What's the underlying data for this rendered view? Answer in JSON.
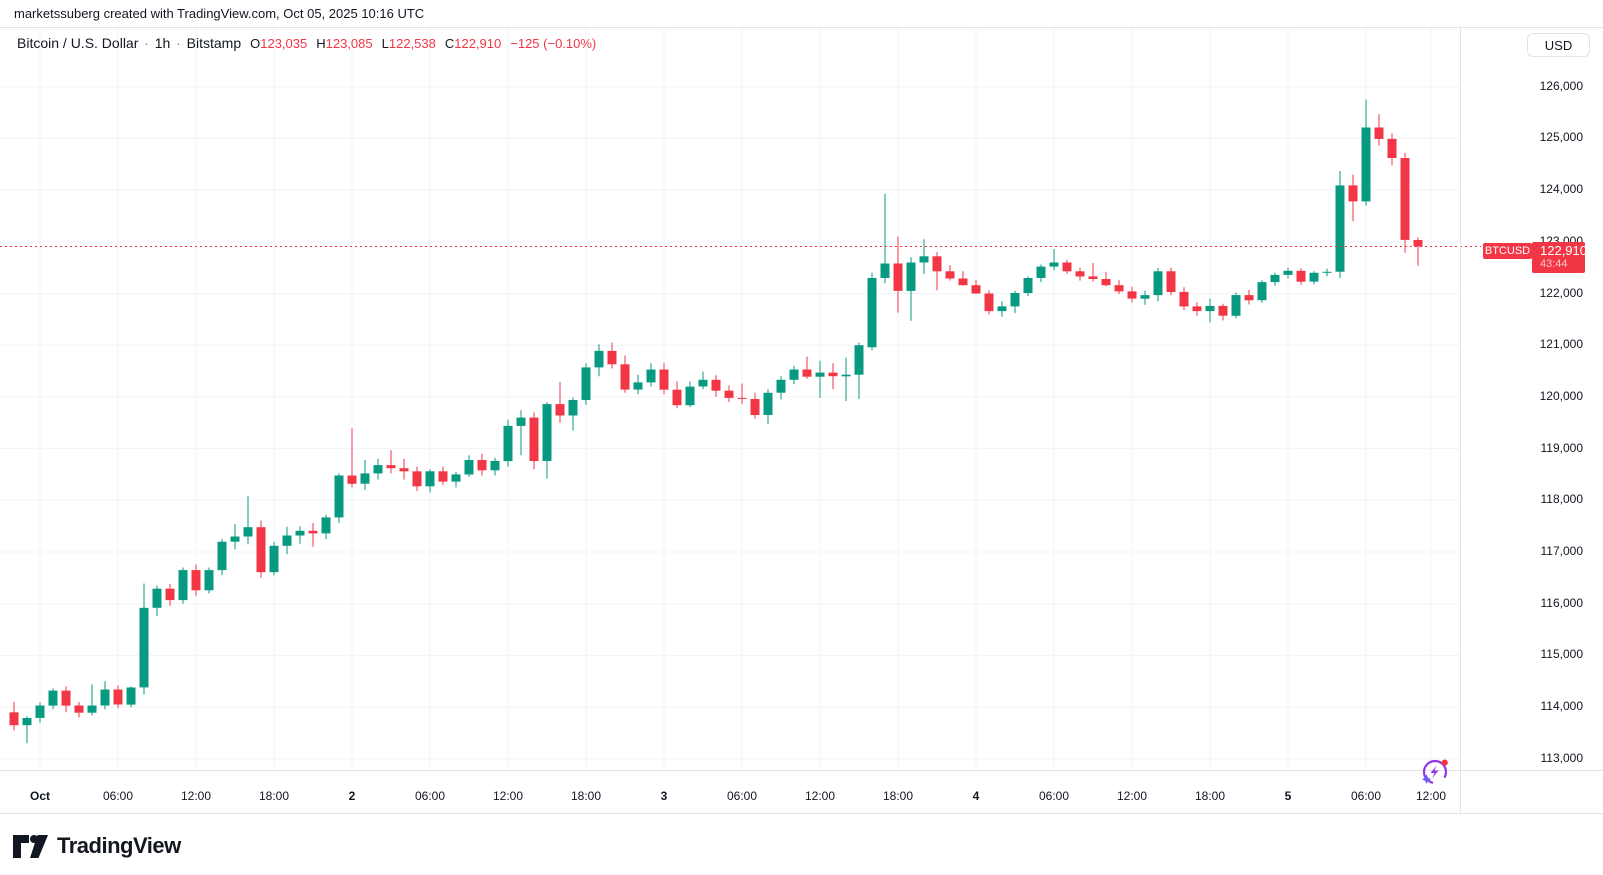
{
  "attribution": "marketssuberg created with TradingView.com, Oct 05, 2025 10:16 UTC",
  "header": {
    "symbol_title": "Bitcoin / U.S. Dollar",
    "separator": "·",
    "interval": "1h",
    "exchange": "Bitstamp",
    "ohlc": {
      "open_label": "O",
      "open": "123,035",
      "high_label": "H",
      "high": "123,085",
      "low_label": "L",
      "low": "122,538",
      "close_label": "C",
      "close": "122,910",
      "change": "−125 (−0.10%)"
    }
  },
  "currency_button_label": "USD",
  "price_axis": {
    "labels": [
      "126,000",
      "125,000",
      "124,000",
      "123,000",
      "122,000",
      "121,000",
      "120,000",
      "119,000",
      "118,000",
      "117,000",
      "116,000",
      "115,000",
      "114,000",
      "113,000"
    ]
  },
  "time_axis": {
    "labels": [
      {
        "text": "Oct",
        "index": 2,
        "bold": true
      },
      {
        "text": "06:00",
        "index": 8,
        "bold": false
      },
      {
        "text": "12:00",
        "index": 14,
        "bold": false
      },
      {
        "text": "18:00",
        "index": 20,
        "bold": false
      },
      {
        "text": "2",
        "index": 26,
        "bold": true
      },
      {
        "text": "06:00",
        "index": 32,
        "bold": false
      },
      {
        "text": "12:00",
        "index": 38,
        "bold": false
      },
      {
        "text": "18:00",
        "index": 44,
        "bold": false
      },
      {
        "text": "3",
        "index": 50,
        "bold": true
      },
      {
        "text": "06:00",
        "index": 56,
        "bold": false
      },
      {
        "text": "12:00",
        "index": 62,
        "bold": false
      },
      {
        "text": "18:00",
        "index": 68,
        "bold": false
      },
      {
        "text": "4",
        "index": 74,
        "bold": true
      },
      {
        "text": "06:00",
        "index": 80,
        "bold": false
      },
      {
        "text": "12:00",
        "index": 86,
        "bold": false
      },
      {
        "text": "18:00",
        "index": 92,
        "bold": false
      },
      {
        "text": "5",
        "index": 98,
        "bold": true
      },
      {
        "text": "06:00",
        "index": 104,
        "bold": false
      },
      {
        "text": "12:00",
        "index": 109,
        "bold": false
      }
    ]
  },
  "price_line": {
    "ticker": "BTCUSD",
    "price": "122,910",
    "countdown": "43:44"
  },
  "logo_text": "TradingView",
  "colors": {
    "up": "#089981",
    "down": "#f23645",
    "grid": "#f0f3fa",
    "border": "#e0e3eb",
    "axis_text": "#131722",
    "background": "#ffffff",
    "icon_purple": "#9334e9",
    "icon_star": "#6d5ef3",
    "notification_red": "#f23645"
  },
  "chart_data": {
    "type": "candlestick",
    "symbol": "BTCUSD",
    "title": "Bitcoin / U.S. Dollar",
    "interval": "1h",
    "exchange": "Bitstamp",
    "y_min": 113000,
    "y_max": 126000,
    "grid": true,
    "current_price": 122910,
    "columns": [
      "time",
      "open",
      "high",
      "low",
      "close"
    ],
    "candles": [
      [
        "Sep 30 22:00",
        113900,
        114100,
        113550,
        113650
      ],
      [
        "Sep 30 23:00",
        113650,
        113820,
        113300,
        113790
      ],
      [
        "Oct 1 00:00",
        113790,
        114090,
        113700,
        114030
      ],
      [
        "01:00",
        114030,
        114360,
        113960,
        114320
      ],
      [
        "02:00",
        114320,
        114400,
        113900,
        114030
      ],
      [
        "03:00",
        114030,
        114100,
        113800,
        113890
      ],
      [
        "04:00",
        113890,
        114440,
        113840,
        114030
      ],
      [
        "05:00",
        114030,
        114500,
        113960,
        114340
      ],
      [
        "06:00",
        114340,
        114420,
        113980,
        114050
      ],
      [
        "07:00",
        114050,
        114400,
        114000,
        114380
      ],
      [
        "08:00",
        114380,
        116390,
        114250,
        115920
      ],
      [
        "09:00",
        115920,
        116350,
        115760,
        116290
      ],
      [
        "10:00",
        116290,
        116380,
        115960,
        116070
      ],
      [
        "11:00",
        116070,
        116700,
        116000,
        116650
      ],
      [
        "12:00",
        116650,
        116760,
        116150,
        116260
      ],
      [
        "13:00",
        116260,
        116700,
        116200,
        116650
      ],
      [
        "14:00",
        116650,
        117250,
        116550,
        117200
      ],
      [
        "15:00",
        117200,
        117540,
        117050,
        117300
      ],
      [
        "16:00",
        117300,
        118080,
        117150,
        117480
      ],
      [
        "17:00",
        117480,
        117610,
        116500,
        116610
      ],
      [
        "18:00",
        116610,
        117200,
        116550,
        117120
      ],
      [
        "19:00",
        117120,
        117490,
        116960,
        117320
      ],
      [
        "20:00",
        117320,
        117500,
        117160,
        117410
      ],
      [
        "21:00",
        117410,
        117560,
        117100,
        117360
      ],
      [
        "22:00",
        117360,
        117720,
        117250,
        117670
      ],
      [
        "23:00",
        117670,
        118520,
        117560,
        118480
      ],
      [
        "Oct 2 00:00",
        118480,
        119390,
        118250,
        118320
      ],
      [
        "01:00",
        118320,
        118780,
        118200,
        118520
      ],
      [
        "02:00",
        118520,
        118800,
        118400,
        118680
      ],
      [
        "03:00",
        118680,
        118970,
        118520,
        118620
      ],
      [
        "04:00",
        118620,
        118800,
        118400,
        118560
      ],
      [
        "05:00",
        118560,
        118650,
        118180,
        118270
      ],
      [
        "06:00",
        118270,
        118600,
        118150,
        118560
      ],
      [
        "07:00",
        118560,
        118650,
        118300,
        118360
      ],
      [
        "08:00",
        118360,
        118550,
        118250,
        118500
      ],
      [
        "09:00",
        118500,
        118870,
        118450,
        118780
      ],
      [
        "10:00",
        118780,
        118900,
        118480,
        118580
      ],
      [
        "11:00",
        118580,
        118820,
        118480,
        118760
      ],
      [
        "12:00",
        118760,
        119560,
        118650,
        119440
      ],
      [
        "13:00",
        119440,
        119740,
        118870,
        119600
      ],
      [
        "14:00",
        119600,
        119700,
        118600,
        118760
      ],
      [
        "15:00",
        118760,
        119900,
        118420,
        119860
      ],
      [
        "16:00",
        119860,
        120290,
        119500,
        119640
      ],
      [
        "17:00",
        119640,
        119990,
        119350,
        119940
      ],
      [
        "18:00",
        119940,
        120650,
        119850,
        120570
      ],
      [
        "19:00",
        120570,
        121020,
        120400,
        120890
      ],
      [
        "20:00",
        120890,
        121050,
        120550,
        120630
      ],
      [
        "21:00",
        120630,
        120800,
        120080,
        120140
      ],
      [
        "22:00",
        120140,
        120430,
        120050,
        120280
      ],
      [
        "23:00",
        120280,
        120650,
        120200,
        120530
      ],
      [
        "Oct 3 00:00",
        120530,
        120650,
        120050,
        120140
      ],
      [
        "01:00",
        120140,
        120300,
        119780,
        119840
      ],
      [
        "02:00",
        119840,
        120300,
        119800,
        120200
      ],
      [
        "03:00",
        120200,
        120490,
        120150,
        120330
      ],
      [
        "04:00",
        120330,
        120420,
        120000,
        120120
      ],
      [
        "05:00",
        120120,
        120220,
        119900,
        119980
      ],
      [
        "06:00",
        119980,
        120260,
        119860,
        119960
      ],
      [
        "07:00",
        119960,
        120080,
        119580,
        119650
      ],
      [
        "08:00",
        119650,
        120150,
        119470,
        120080
      ],
      [
        "09:00",
        120080,
        120400,
        119950,
        120330
      ],
      [
        "10:00",
        120330,
        120600,
        120250,
        120530
      ],
      [
        "11:00",
        120530,
        120780,
        120350,
        120390
      ],
      [
        "12:00",
        120390,
        120700,
        119980,
        120470
      ],
      [
        "13:00",
        120470,
        120650,
        120150,
        120400
      ],
      [
        "14:00",
        120400,
        120760,
        119920,
        120430
      ],
      [
        "15:00",
        120430,
        121050,
        119960,
        121000
      ],
      [
        "16:00",
        120960,
        122400,
        120900,
        122300
      ],
      [
        "17:00",
        122300,
        123930,
        122200,
        122580
      ],
      [
        "18:00",
        122580,
        123100,
        121630,
        122050
      ],
      [
        "19:00",
        122050,
        122700,
        121470,
        122600
      ],
      [
        "20:00",
        122600,
        123050,
        122380,
        122720
      ],
      [
        "21:00",
        122720,
        122800,
        122060,
        122430
      ],
      [
        "22:00",
        122430,
        122550,
        122250,
        122290
      ],
      [
        "23:00",
        122290,
        122430,
        122150,
        122160
      ],
      [
        "Oct 4 00:00",
        122160,
        122260,
        121990,
        122000
      ],
      [
        "01:00",
        122000,
        122060,
        121600,
        121660
      ],
      [
        "02:00",
        121660,
        121850,
        121550,
        121750
      ],
      [
        "03:00",
        121750,
        122050,
        121620,
        122010
      ],
      [
        "04:00",
        122010,
        122330,
        121950,
        122300
      ],
      [
        "05:00",
        122300,
        122560,
        122220,
        122520
      ],
      [
        "06:00",
        122520,
        122860,
        122450,
        122600
      ],
      [
        "07:00",
        122600,
        122650,
        122380,
        122430
      ],
      [
        "08:00",
        122430,
        122500,
        122250,
        122330
      ],
      [
        "09:00",
        122330,
        122590,
        122230,
        122280
      ],
      [
        "10:00",
        122280,
        122420,
        122140,
        122160
      ],
      [
        "11:00",
        122160,
        122260,
        121990,
        122040
      ],
      [
        "12:00",
        122040,
        122130,
        121830,
        121900
      ],
      [
        "13:00",
        121900,
        122050,
        121780,
        121970
      ],
      [
        "14:00",
        121970,
        122500,
        121850,
        122430
      ],
      [
        "15:00",
        122430,
        122500,
        121970,
        122030
      ],
      [
        "16:00",
        122030,
        122120,
        121680,
        121750
      ],
      [
        "17:00",
        121750,
        121830,
        121570,
        121660
      ],
      [
        "18:00",
        121660,
        121900,
        121440,
        121760
      ],
      [
        "19:00",
        121760,
        121800,
        121480,
        121570
      ],
      [
        "20:00",
        121570,
        122020,
        121520,
        121970
      ],
      [
        "21:00",
        121970,
        122070,
        121790,
        121870
      ],
      [
        "22:00",
        121870,
        122260,
        121820,
        122220
      ],
      [
        "23:00",
        122220,
        122400,
        122150,
        122360
      ],
      [
        "Oct 5 00:00",
        122360,
        122500,
        122290,
        122440
      ],
      [
        "01:00",
        122440,
        122490,
        122170,
        122230
      ],
      [
        "02:00",
        122230,
        122430,
        122180,
        122400
      ],
      [
        "03:00",
        122400,
        122480,
        122330,
        122420
      ],
      [
        "04:00",
        122420,
        124370,
        122300,
        124090
      ],
      [
        "05:00",
        124090,
        124300,
        123400,
        123780
      ],
      [
        "06:00",
        123780,
        125750,
        123700,
        125210
      ],
      [
        "07:00",
        125210,
        125470,
        124860,
        124990
      ],
      [
        "08:00",
        124990,
        125100,
        124480,
        124620
      ],
      [
        "09:00",
        124620,
        124720,
        122790,
        123035
      ],
      [
        "10:00",
        123035,
        123085,
        122538,
        122910
      ]
    ]
  }
}
